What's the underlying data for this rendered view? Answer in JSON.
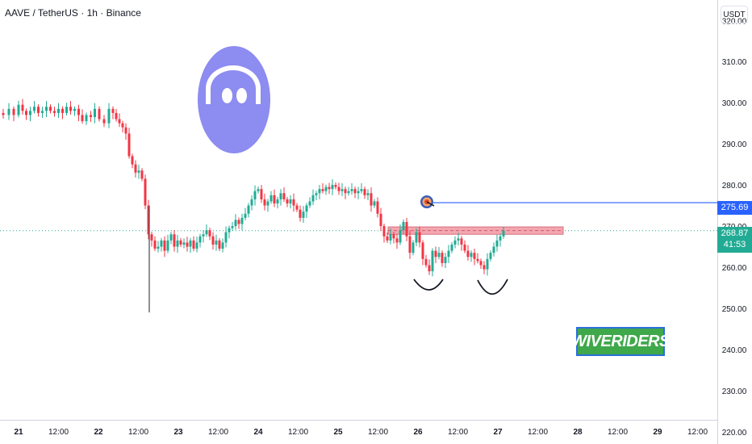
{
  "header": {
    "symbol": "AAVE / TetherUS · 1h · Binance"
  },
  "axis": {
    "currency_button": "USDT"
  },
  "price_tags": {
    "target": "275.69",
    "current": "268.87",
    "countdown": "41:53"
  },
  "branding": {
    "watermark": "WIVERIDERS"
  },
  "colors": {
    "up": "#22ab94",
    "down": "#f23645",
    "target_line": "#2962ff",
    "resistance_zone": "#f4a6b0",
    "logo": "#8d8cf0",
    "watermark_bg": "#3fa84a"
  },
  "chart_data": {
    "type": "candlestick",
    "title": "AAVE / TetherUS · 1h · Binance",
    "y_ticks": [
      320,
      310,
      300,
      290,
      280,
      270,
      260,
      250,
      240,
      230,
      220
    ],
    "x_ticks": [
      "21",
      "12:00",
      "22",
      "12:00",
      "23",
      "12:00",
      "24",
      "12:00",
      "25",
      "12:00",
      "26",
      "12:00",
      "27",
      "12:00",
      "28",
      "12:00",
      "29",
      "12:00"
    ],
    "ylim": [
      218,
      323
    ],
    "current_price": 268.87,
    "target_price": 275.69,
    "resistance_zone": [
      268.0,
      269.8
    ],
    "price_path": [
      [
        0,
        297.5
      ],
      [
        8,
        297.0
      ],
      [
        14,
        298.5
      ],
      [
        20,
        297.0
      ],
      [
        26,
        299.5
      ],
      [
        30,
        298.0
      ],
      [
        35,
        297.0
      ],
      [
        40,
        298.0
      ],
      [
        45,
        299.0
      ],
      [
        50,
        297.5
      ],
      [
        55,
        298.0
      ],
      [
        60,
        299.0
      ],
      [
        65,
        298.0
      ],
      [
        70,
        297.5
      ],
      [
        75,
        298.5
      ],
      [
        80,
        297.5
      ],
      [
        85,
        299.0
      ],
      [
        90,
        298.0
      ],
      [
        95,
        298.5
      ],
      [
        100,
        297.0
      ],
      [
        104,
        295.5
      ],
      [
        110,
        297.0
      ],
      [
        115,
        296.5
      ],
      [
        120,
        298.5
      ],
      [
        126,
        296.0
      ],
      [
        132,
        295.0
      ],
      [
        138,
        298.5
      ],
      [
        142,
        297.5
      ],
      [
        146,
        296.0
      ],
      [
        150,
        295.0
      ],
      [
        154,
        294.0
      ],
      [
        158,
        292.5
      ],
      [
        162,
        287.0
      ],
      [
        166,
        285.0
      ],
      [
        170,
        283.0
      ],
      [
        174,
        283.5
      ],
      [
        178,
        281.5
      ],
      [
        182,
        275.0
      ],
      [
        186,
        268.0
      ],
      [
        190,
        266.5
      ],
      [
        194,
        264.5
      ],
      [
        198,
        265.0
      ],
      [
        202,
        266.5
      ],
      [
        206,
        264.0
      ],
      [
        210,
        266.5
      ],
      [
        214,
        268.0
      ],
      [
        218,
        265.0
      ],
      [
        222,
        266.5
      ],
      [
        226,
        265.5
      ],
      [
        230,
        266.0
      ],
      [
        234,
        265.0
      ],
      [
        238,
        266.5
      ],
      [
        242,
        264.5
      ],
      [
        246,
        266.0
      ],
      [
        250,
        267.5
      ],
      [
        254,
        268.0
      ],
      [
        258,
        269.0
      ],
      [
        262,
        267.5
      ],
      [
        266,
        265.5
      ],
      [
        270,
        266.5
      ],
      [
        274,
        264.5
      ],
      [
        278,
        266.0
      ],
      [
        282,
        268.5
      ],
      [
        286,
        269.5
      ],
      [
        290,
        270.0
      ],
      [
        294,
        271.5
      ],
      [
        298,
        270.5
      ],
      [
        302,
        272.0
      ],
      [
        306,
        273.0
      ],
      [
        310,
        275.0
      ],
      [
        314,
        276.5
      ],
      [
        318,
        278.5
      ],
      [
        322,
        279.0
      ],
      [
        326,
        276.5
      ],
      [
        330,
        275.0
      ],
      [
        334,
        276.0
      ],
      [
        338,
        277.5
      ],
      [
        342,
        275.5
      ],
      [
        346,
        276.5
      ],
      [
        350,
        278.0
      ],
      [
        354,
        276.5
      ],
      [
        358,
        275.5
      ],
      [
        362,
        276.5
      ],
      [
        366,
        275.0
      ],
      [
        370,
        274.0
      ],
      [
        374,
        272.0
      ],
      [
        378,
        273.5
      ],
      [
        382,
        275.0
      ],
      [
        386,
        276.0
      ],
      [
        390,
        277.5
      ],
      [
        394,
        278.0
      ],
      [
        398,
        279.0
      ],
      [
        402,
        278.5
      ],
      [
        406,
        279.5
      ],
      [
        410,
        279.0
      ],
      [
        414,
        280.0
      ],
      [
        418,
        279.5
      ],
      [
        422,
        278.5
      ],
      [
        426,
        279.0
      ],
      [
        430,
        278.0
      ],
      [
        434,
        278.5
      ],
      [
        438,
        279.0
      ],
      [
        442,
        278.0
      ],
      [
        446,
        278.5
      ],
      [
        450,
        279.0
      ],
      [
        454,
        277.5
      ],
      [
        458,
        278.0
      ],
      [
        462,
        275.0
      ],
      [
        466,
        276.0
      ],
      [
        470,
        273.0
      ],
      [
        474,
        270.0
      ],
      [
        478,
        267.5
      ],
      [
        482,
        266.5
      ],
      [
        486,
        268.0
      ],
      [
        490,
        267.0
      ],
      [
        494,
        266.0
      ],
      [
        498,
        269.0
      ],
      [
        502,
        271.0
      ],
      [
        506,
        267.5
      ],
      [
        510,
        263.5
      ],
      [
        514,
        266.0
      ],
      [
        518,
        268.5
      ],
      [
        522,
        266.0
      ],
      [
        526,
        262.0
      ],
      [
        530,
        260.5
      ],
      [
        534,
        259.0
      ],
      [
        538,
        264.0
      ],
      [
        542,
        262.5
      ],
      [
        546,
        263.5
      ],
      [
        550,
        261.0
      ],
      [
        554,
        262.5
      ],
      [
        558,
        264.0
      ],
      [
        562,
        265.5
      ],
      [
        566,
        266.5
      ],
      [
        570,
        267.0
      ],
      [
        574,
        265.5
      ],
      [
        578,
        264.0
      ],
      [
        582,
        262.5
      ],
      [
        586,
        263.5
      ],
      [
        590,
        262.0
      ],
      [
        594,
        261.5
      ],
      [
        598,
        260.5
      ],
      [
        602,
        259.5
      ],
      [
        606,
        262.0
      ],
      [
        610,
        263.5
      ],
      [
        614,
        265.0
      ],
      [
        618,
        266.5
      ],
      [
        622,
        267.5
      ],
      [
        626,
        268.87
      ]
    ],
    "spike_low": [
      185,
      249.0
    ]
  }
}
